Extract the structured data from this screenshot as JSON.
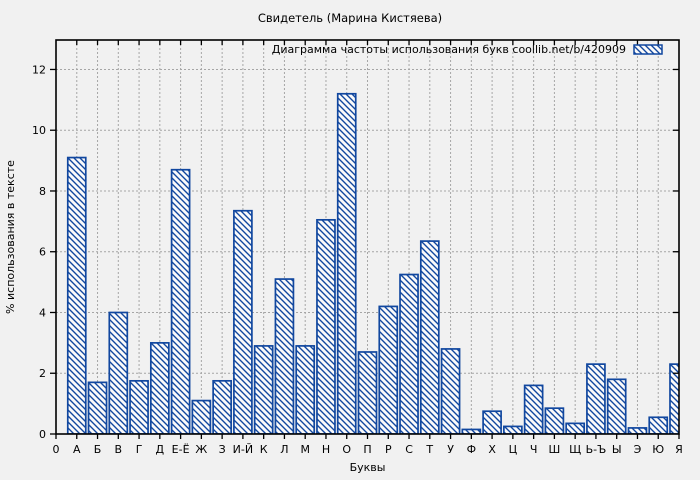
{
  "chart_data": {
    "type": "bar",
    "title": "Свидетель (Марина Кистяева)",
    "legend_label": "Диаграмма частоты использования букв  coollib.net/b/420909",
    "xlabel": "Буквы",
    "ylabel": "% использования в тексте",
    "categories": [
      "0",
      "А",
      "Б",
      "В",
      "Г",
      "Д",
      "Е-Ё",
      "Ж",
      "З",
      "И-Й",
      "К",
      "Л",
      "М",
      "Н",
      "О",
      "П",
      "Р",
      "С",
      "Т",
      "У",
      "Ф",
      "Х",
      "Ц",
      "Ч",
      "Ш",
      "Щ",
      "Ь-Ъ",
      "Ы",
      "Э",
      "Ю",
      "Я"
    ],
    "values": [
      0,
      9.1,
      1.7,
      4.0,
      1.75,
      3.0,
      8.7,
      1.1,
      1.75,
      7.35,
      2.9,
      5.1,
      2.9,
      7.05,
      11.2,
      2.7,
      4.2,
      5.25,
      6.35,
      2.8,
      0.15,
      0.75,
      0.25,
      1.6,
      0.85,
      0.35,
      2.3,
      1.8,
      0.2,
      0.55,
      2.3
    ],
    "yticks": [
      0,
      2,
      4,
      6,
      8,
      10,
      12
    ],
    "ylim": [
      0,
      12.97
    ],
    "grid": true,
    "legend_position": "top-right-inside",
    "hatch": "diagonal-backslash",
    "colors": {
      "bar_stroke": "#11479f",
      "bar_fill": "#fafafa",
      "grid": "#a6a6a6",
      "axis": "#000000",
      "background": "#f1f1f1",
      "text": "#000000"
    }
  }
}
